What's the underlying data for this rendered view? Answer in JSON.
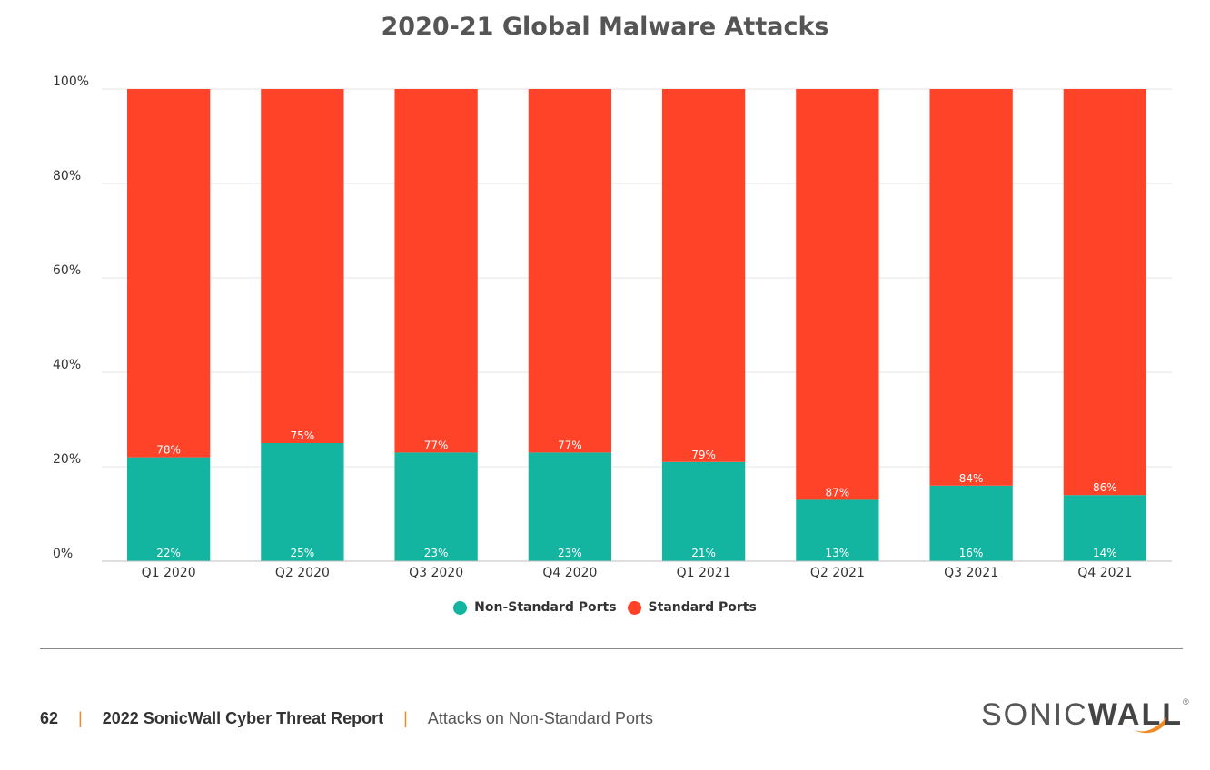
{
  "chart_data": {
    "type": "bar",
    "stacked": true,
    "title": "2020-21 Global Malware Attacks",
    "categories": [
      "Q1 2020",
      "Q2 2020",
      "Q3 2020",
      "Q4 2020",
      "Q1 2021",
      "Q2 2021",
      "Q3 2021",
      "Q4 2021"
    ],
    "series": [
      {
        "name": "Non-Standard Ports",
        "color": "#13b5a0",
        "values": [
          22,
          25,
          23,
          23,
          21,
          13,
          16,
          14
        ],
        "labels": [
          "22%",
          "25%",
          "23%",
          "23%",
          "21%",
          "13%",
          "16%",
          "14%"
        ]
      },
      {
        "name": "Standard Ports",
        "color": "#ff4329",
        "values": [
          78,
          75,
          77,
          77,
          79,
          87,
          84,
          86
        ],
        "labels": [
          "78%",
          "75%",
          "77%",
          "77%",
          "79%",
          "87%",
          "84%",
          "86%"
        ]
      }
    ],
    "y_ticks": [
      "0%",
      "20%",
      "40%",
      "60%",
      "80%",
      "100%"
    ],
    "y_tick_values": [
      0,
      20,
      40,
      60,
      80,
      100
    ],
    "ylim": [
      0,
      100
    ],
    "grid": true,
    "legend_position": "bottom"
  },
  "footer": {
    "page_number": "62",
    "report_title": "2022 SonicWall Cyber Threat Report",
    "section": "Attacks on Non-Standard Ports",
    "separator": "|"
  },
  "logo": {
    "text_light": "SONIC",
    "text_bold": "WALL",
    "registered": "®",
    "accent_color": "#f08a24"
  }
}
